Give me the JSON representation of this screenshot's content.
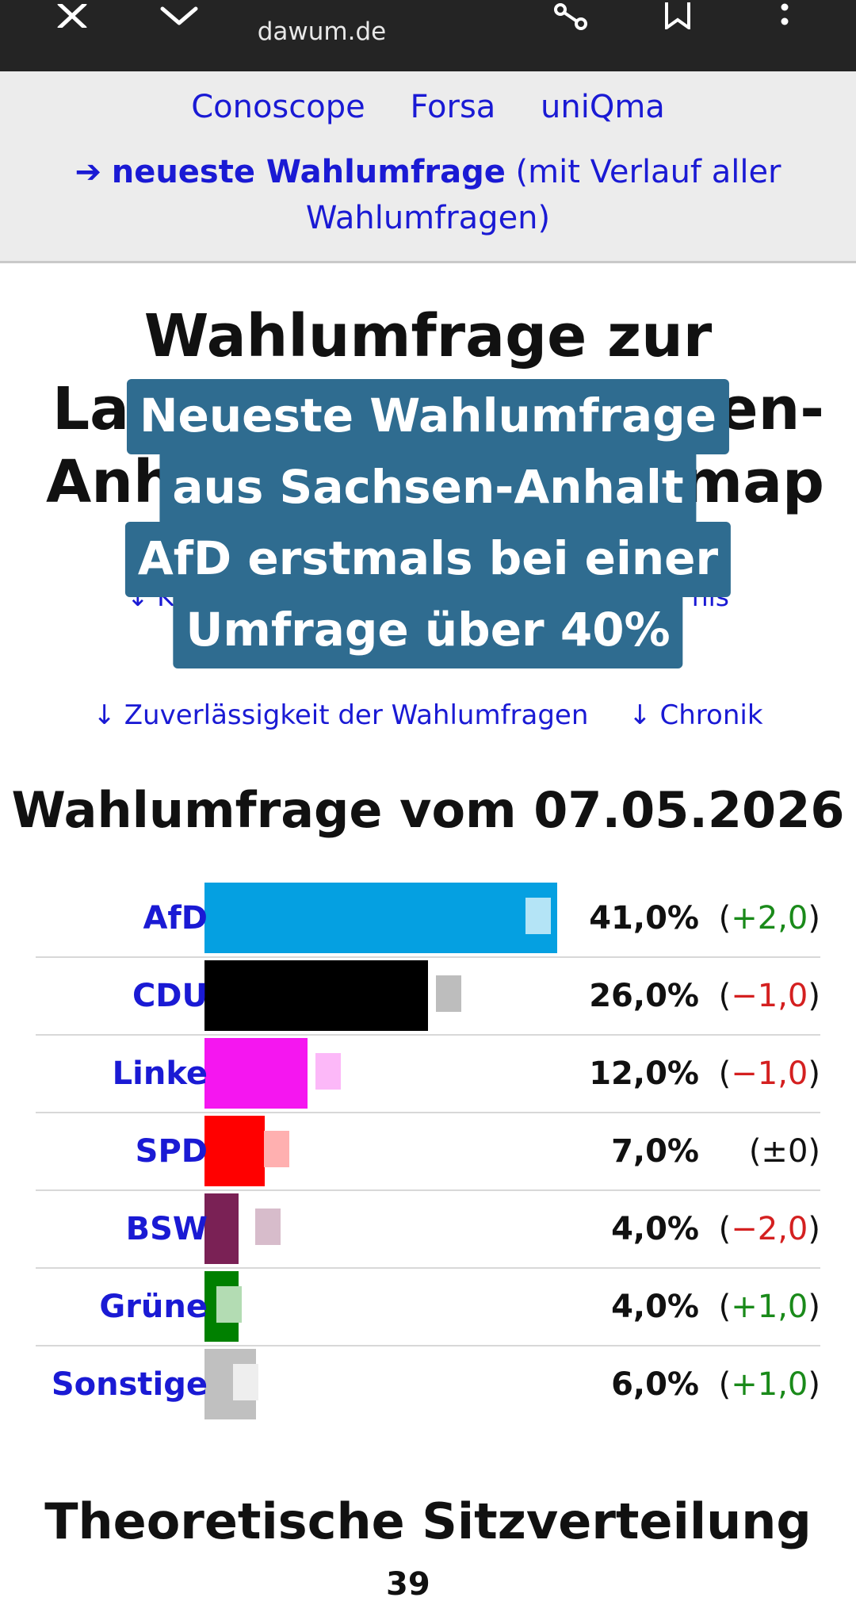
{
  "browser": {
    "url": "dawum.de",
    "icons": [
      "close-icon",
      "dropdown-icon",
      "share-icon",
      "bookmark-icon",
      "more-icon"
    ]
  },
  "nav": {
    "pollsters": [
      "Conoscope",
      "Forsa",
      "uniQma"
    ],
    "newest_arrow": "➔",
    "newest_bold": "neueste Wahlumfrage",
    "newest_rest": " (mit Verlauf aller Wahlumfragen)"
  },
  "page": {
    "title_line1": "Wahlumfrage zur",
    "title_line2_left": "Lan",
    "title_line2_right": "en-",
    "title_line3_left": "Anha",
    "title_line3_right": "map",
    "sublink_left": "↓ Ko",
    "sublink_right": "nis",
    "links": [
      "↓ Zuverlässigkeit der Wahlumfragen",
      "↓ Chronik"
    ]
  },
  "caption": {
    "lines": [
      "Neueste Wahlumfrage",
      "aus Sachsen-Anhalt",
      "AfD erstmals bei einer",
      "Umfrage über 40%"
    ]
  },
  "poll": {
    "title": "Wahlumfrage vom 07.05.2026",
    "parties": [
      {
        "name": "AfD",
        "pct_label": "41,0%",
        "pct": 41.0,
        "change_label": "(+2,0)",
        "change_sign": "+2,0",
        "prev": 39.0,
        "color": "#05a0e1",
        "prev_color": "#b4e4f6",
        "change_color": "#1a8a1a"
      },
      {
        "name": "CDU",
        "pct_label": "26,0%",
        "pct": 26.0,
        "change_label": "(−1,0)",
        "change_sign": "−1,0",
        "prev": 27.0,
        "color": "#000000",
        "prev_color": "#bdbdbd",
        "change_color": "#d42020"
      },
      {
        "name": "Linke",
        "pct_label": "12,0%",
        "pct": 12.0,
        "change_label": "(−1,0)",
        "change_sign": "−1,0",
        "prev": 13.0,
        "color": "#f516f0",
        "prev_color": "#fcb8f8",
        "change_color": "#d42020"
      },
      {
        "name": "SPD",
        "pct_label": "7,0%",
        "pct": 7.0,
        "change_label": "(±0)",
        "change_sign": "±0",
        "prev": 7.0,
        "color": "#ff0000",
        "prev_color": "#ffb0b0",
        "change_color": "#111111"
      },
      {
        "name": "BSW",
        "pct_label": "4,0%",
        "pct": 4.0,
        "change_label": "(−2,0)",
        "change_sign": "−2,0",
        "prev": 6.0,
        "color": "#7a2155",
        "prev_color": "#d7bccb",
        "change_color": "#d42020"
      },
      {
        "name": "Grüne",
        "pct_label": "4,0%",
        "pct": 4.0,
        "change_label": "(+1,0)",
        "change_sign": "+1,0",
        "prev": 3.0,
        "color": "#008000",
        "prev_color": "#b3dcb3",
        "change_color": "#1a8a1a"
      },
      {
        "name": "Sonstige",
        "pct_label": "6,0%",
        "pct": 6.0,
        "change_label": "(+1,0)",
        "change_sign": "+1,0",
        "prev": 5.0,
        "color": "#c0c0c0",
        "prev_color": "#eeeeee",
        "change_color": "#1a8a1a"
      }
    ]
  },
  "seats": {
    "title": "Theoretische Sitzverteilung",
    "total": "39"
  }
}
